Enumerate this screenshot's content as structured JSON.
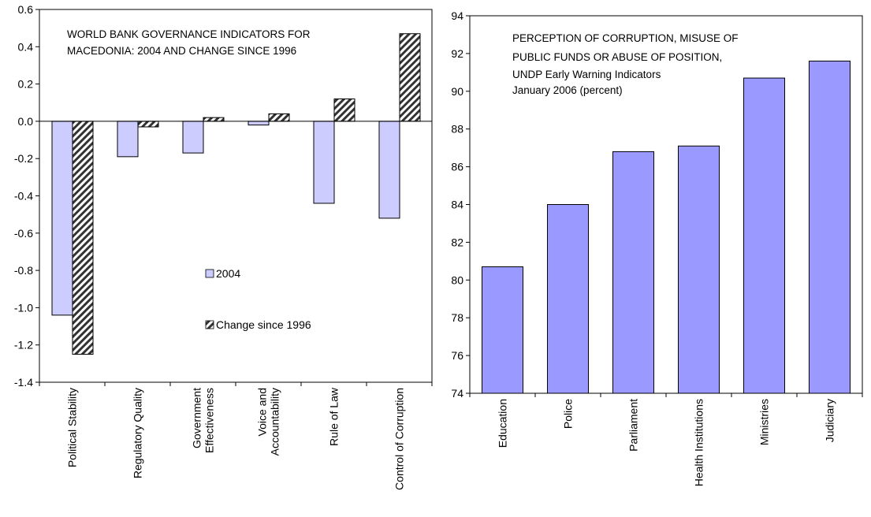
{
  "charts": [
    {
      "chart_data": {
        "type": "bar",
        "title_lines": [
          "WORLD BANK GOVERNANCE INDICATORS FOR",
          "MACEDONIA: 2004 AND CHANGE SINCE 1996"
        ],
        "categories": [
          [
            "Political Stability"
          ],
          [
            "Regulatory Quality"
          ],
          [
            "Government",
            "Effectiveness"
          ],
          [
            "Voice and",
            "Accountability"
          ],
          [
            "Rule of Law"
          ],
          [
            "Control of Corruption"
          ]
        ],
        "series": [
          {
            "name": "2004",
            "values": [
              -1.04,
              -0.19,
              -0.17,
              -0.02,
              -0.44,
              -0.52
            ],
            "color": "#ccccff",
            "pattern": "solid"
          },
          {
            "name": "Change since 1996",
            "values": [
              -1.25,
              -0.03,
              0.02,
              0.04,
              0.12,
              0.47
            ],
            "color": "#333333",
            "pattern": "hatch"
          }
        ],
        "ylim": [
          -1.4,
          0.6
        ],
        "yticks": [
          "0.6",
          "0.4",
          "0.2",
          "0.0",
          "-0.2",
          "-0.4",
          "-0.6",
          "-0.8",
          "-1.0",
          "-1.2",
          "-1.4"
        ],
        "legend_position": "inside-center"
      }
    },
    {
      "chart_data": {
        "type": "bar",
        "title_lines": [
          "PERCEPTION OF CORRUPTION, MISUSE OF",
          "PUBLIC FUNDS OR ABUSE OF POSITION,",
          "UNDP Early Warning Indicators",
          "January 2006 (percent)"
        ],
        "categories": [
          [
            "Education"
          ],
          [
            "Police"
          ],
          [
            "Parliament"
          ],
          [
            "Health Institutions"
          ],
          [
            "Ministries"
          ],
          [
            "Judiciary"
          ]
        ],
        "series": [
          {
            "values": [
              80.7,
              84.0,
              86.8,
              87.1,
              90.7,
              91.6
            ],
            "color": "#9999ff",
            "pattern": "solid"
          }
        ],
        "ylim": [
          74,
          94
        ],
        "yticks": [
          "94",
          "92",
          "90",
          "88",
          "86",
          "84",
          "82",
          "80",
          "78",
          "76",
          "74"
        ]
      }
    }
  ]
}
